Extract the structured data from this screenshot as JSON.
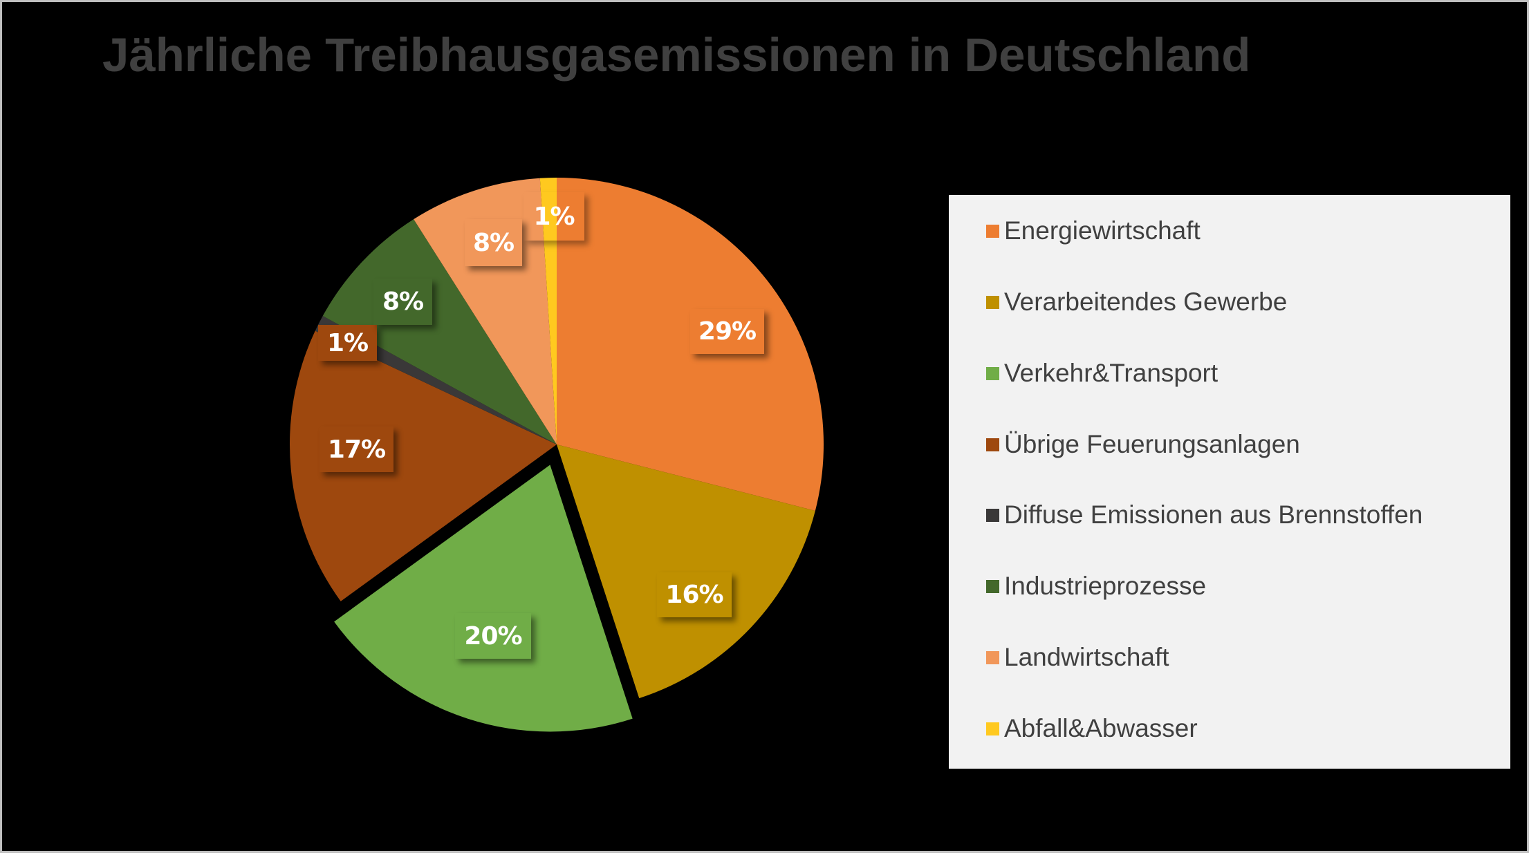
{
  "title": "Jährliche Treibhausgasemissionen in Deutschland",
  "legend": {
    "items": [
      {
        "label": "Energiewirtschaft",
        "color": "#ed7d31"
      },
      {
        "label": "Verarbeitendes Gewerbe",
        "color": "#bf9000"
      },
      {
        "label": "Verkehr&Transport",
        "color": "#70ad47"
      },
      {
        "label": "Übrige Feuerungsanlagen",
        "color": "#9e480e"
      },
      {
        "label": "Diffuse Emissionen aus Brennstoffen",
        "color": "#3a3838"
      },
      {
        "label": "Industrieprozesse",
        "color": "#43682b"
      },
      {
        "label": "Landwirtschaft",
        "color": "#f1975a"
      },
      {
        "label": "Abfall&Abwasser",
        "color": "#ffc91f"
      }
    ]
  },
  "data_labels": [
    "29%",
    "16%",
    "20%",
    "17%",
    "1%",
    "8%",
    "8%",
    "1%"
  ],
  "chart_data": {
    "type": "pie",
    "title": "Jährliche Treibhausgasemissionen in Deutschland",
    "categories": [
      "Energiewirtschaft",
      "Verarbeitendes Gewerbe",
      "Verkehr&Transport",
      "Übrige Feuerungsanlagen",
      "Diffuse Emissionen aus Brennstoffen",
      "Industrieprozesse",
      "Landwirtschaft",
      "Abfall&Abwasser"
    ],
    "values": [
      29,
      16,
      20,
      17,
      1,
      8,
      8,
      1
    ],
    "unit": "%",
    "colors": [
      "#ed7d31",
      "#bf9000",
      "#70ad47",
      "#9e480e",
      "#3a3838",
      "#43682b",
      "#f1975a",
      "#ffc91f"
    ],
    "exploded": [
      "Verkehr&Transport"
    ],
    "start_angle_deg": 0,
    "direction": "clockwise",
    "legend_position": "right",
    "data_labels_shown": true
  }
}
